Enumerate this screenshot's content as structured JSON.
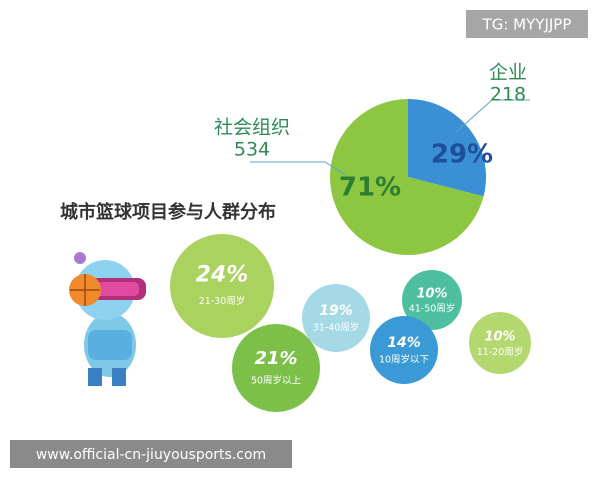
{
  "title": "城市篮球项目参与人群分布",
  "watermark_top": "TG: MYYJJPP",
  "watermark_bottom": "www.official-cn-jiuyousports.com",
  "pie": {
    "slices": [
      {
        "name": "企业",
        "count": "218",
        "percent": 29,
        "percent_label": "29%",
        "color": "#3b8fd4",
        "text_color": "#1f4f9a"
      },
      {
        "name": "社会组织",
        "count": "534",
        "percent": 71,
        "percent_label": "71%",
        "color": "#8dc641",
        "text_color": "#2e7d32"
      }
    ]
  },
  "bubbles": [
    {
      "percent": "24%",
      "group": "21-30周岁",
      "color": "#a9d25f"
    },
    {
      "percent": "19%",
      "group": "31-40周岁",
      "color": "#a6d9e6"
    },
    {
      "percent": "21%",
      "group": "50周岁以上",
      "color": "#7cc04a"
    },
    {
      "percent": "10%",
      "group": "41-50周岁",
      "color": "#4dbf9f"
    },
    {
      "percent": "14%",
      "group": "10周岁以下",
      "color": "#3a9ad6"
    },
    {
      "percent": "10%",
      "group": "11-20周岁",
      "color": "#b3d870"
    }
  ]
}
